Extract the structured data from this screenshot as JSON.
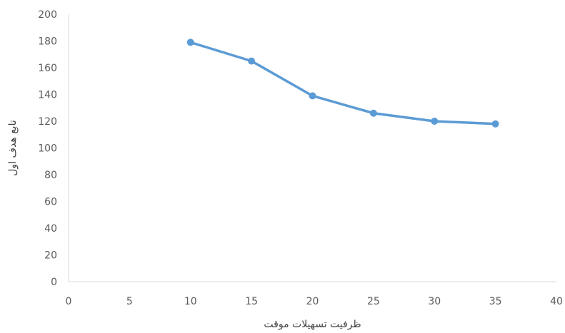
{
  "chart_data": {
    "type": "line",
    "title": "",
    "xlabel": "ظرفیت تسهیلات موقت",
    "ylabel": "تابع هدف اول",
    "xlim": [
      0,
      40
    ],
    "ylim": [
      0,
      200
    ],
    "x_ticks": [
      "0",
      "5",
      "10",
      "15",
      "20",
      "25",
      "30",
      "35",
      "40"
    ],
    "y_ticks": [
      "0",
      "20",
      "40",
      "60",
      "80",
      "100",
      "120",
      "140",
      "160",
      "180",
      "200"
    ],
    "grid": false,
    "legend": "none",
    "series": [
      {
        "color": "#5B9BD5",
        "marker": "circle",
        "points": [
          {
            "x": 10,
            "y": 179
          },
          {
            "x": 15,
            "y": 165
          },
          {
            "x": 20,
            "y": 139
          },
          {
            "x": 25,
            "y": 126
          },
          {
            "x": 30,
            "y": 120
          },
          {
            "x": 35,
            "y": 118
          }
        ]
      }
    ],
    "axis_color": "#d9d9d9"
  }
}
